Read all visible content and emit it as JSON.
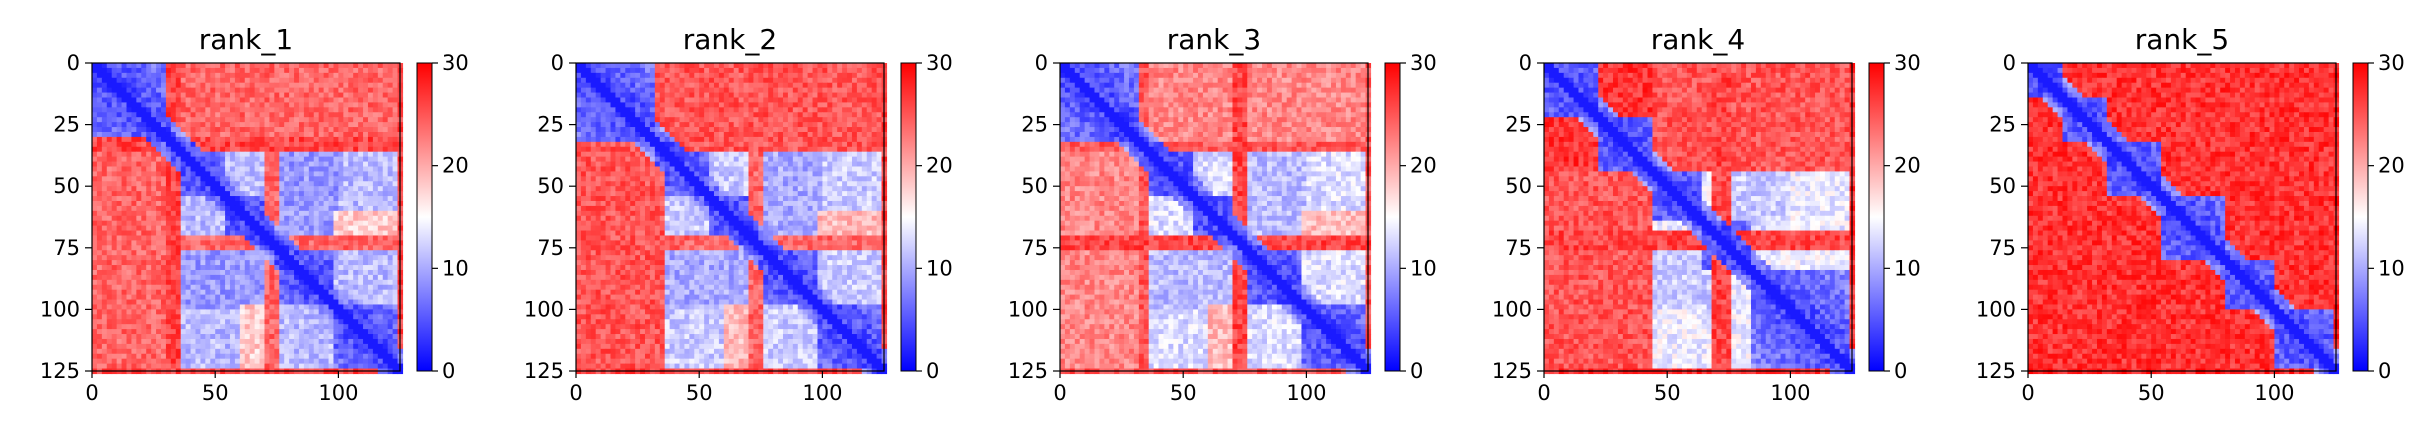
{
  "chart_data": {
    "type": "heatmap",
    "colormap": {
      "name": "bwr",
      "low": "#0000ff",
      "mid": "#ffffff",
      "high": "#ff0000",
      "vmin": 0,
      "vmax": 30
    },
    "colorbar_ticks": [
      0,
      10,
      20,
      30
    ],
    "colorbar_tick_labels": [
      "0",
      "10",
      "20",
      "30"
    ],
    "matrix_size": 125,
    "x_ticks": [
      0,
      50,
      100
    ],
    "x_tick_labels": [
      "0",
      "50",
      "100"
    ],
    "y_ticks": [
      0,
      25,
      50,
      75,
      100,
      125
    ],
    "y_tick_labels": [
      "0",
      "25",
      "50",
      "75",
      "100",
      "125"
    ],
    "panels": [
      {
        "title": "rank_1",
        "domains": [
          [
            0,
            33
          ],
          [
            33,
            55
          ],
          [
            55,
            75
          ],
          [
            75,
            98
          ],
          [
            98,
            125
          ]
        ],
        "contacts": [
          {
            "a": [
              33,
              125
            ],
            "b": [
              33,
              125
            ],
            "value": 11
          },
          {
            "a": [
              33,
              75
            ],
            "b": [
              75,
              100
            ],
            "value": 9
          },
          {
            "a": [
              60,
              75
            ],
            "b": [
              98,
              125
            ],
            "value": 18
          },
          {
            "a": [
              0,
              33
            ],
            "b": [
              33,
              125
            ],
            "value": 24
          }
        ],
        "stripes": [
          {
            "at": 33,
            "width": 3,
            "value": 26
          },
          {
            "at": 73,
            "width": 4,
            "value": 24
          }
        ],
        "background": 26
      },
      {
        "title": "rank_2",
        "domains": [
          [
            0,
            33
          ],
          [
            33,
            55
          ],
          [
            55,
            75
          ],
          [
            75,
            98
          ],
          [
            98,
            125
          ]
        ],
        "contacts": [
          {
            "a": [
              33,
              125
            ],
            "b": [
              33,
              125
            ],
            "value": 12
          },
          {
            "a": [
              33,
              75
            ],
            "b": [
              75,
              100
            ],
            "value": 10
          },
          {
            "a": [
              60,
              75
            ],
            "b": [
              98,
              125
            ],
            "value": 19
          },
          {
            "a": [
              0,
              33
            ],
            "b": [
              33,
              125
            ],
            "value": 25
          }
        ],
        "stripes": [
          {
            "at": 34,
            "width": 3,
            "value": 25
          },
          {
            "at": 73,
            "width": 4,
            "value": 24
          }
        ],
        "background": 26
      },
      {
        "title": "rank_3",
        "domains": [
          [
            0,
            33
          ],
          [
            33,
            55
          ],
          [
            55,
            75
          ],
          [
            75,
            98
          ],
          [
            98,
            125
          ]
        ],
        "contacts": [
          {
            "a": [
              33,
              125
            ],
            "b": [
              33,
              125
            ],
            "value": 13
          },
          {
            "a": [
              33,
              75
            ],
            "b": [
              75,
              100
            ],
            "value": 11
          },
          {
            "a": [
              60,
              75
            ],
            "b": [
              98,
              125
            ],
            "value": 19
          },
          {
            "a": [
              0,
              33
            ],
            "b": [
              33,
              125
            ],
            "value": 22
          }
        ],
        "stripes": [
          {
            "at": 34,
            "width": 3,
            "value": 25
          },
          {
            "at": 73,
            "width": 4,
            "value": 26
          }
        ],
        "background": 25
      },
      {
        "title": "rank_4",
        "domains": [
          [
            0,
            22
          ],
          [
            22,
            45
          ],
          [
            45,
            65
          ],
          [
            65,
            85
          ],
          [
            85,
            125
          ]
        ],
        "contacts": [
          {
            "a": [
              45,
              125
            ],
            "b": [
              45,
              125
            ],
            "value": 14
          },
          {
            "a": [
              45,
              70
            ],
            "b": [
              70,
              100
            ],
            "value": 12
          },
          {
            "a": [
              0,
              45
            ],
            "b": [
              45,
              125
            ],
            "value": 25
          }
        ],
        "stripes": [
          {
            "at": 72,
            "width": 4,
            "value": 26
          }
        ],
        "background": 27
      },
      {
        "title": "rank_5",
        "domains": [
          [
            0,
            15
          ],
          [
            15,
            32
          ],
          [
            32,
            55
          ],
          [
            55,
            80
          ],
          [
            80,
            100
          ],
          [
            100,
            125
          ]
        ],
        "contacts": [
          {
            "a": [
              0,
              125
            ],
            "b": [
              0,
              125
            ],
            "value": 27
          }
        ],
        "stripes": [],
        "background": 28
      }
    ]
  }
}
